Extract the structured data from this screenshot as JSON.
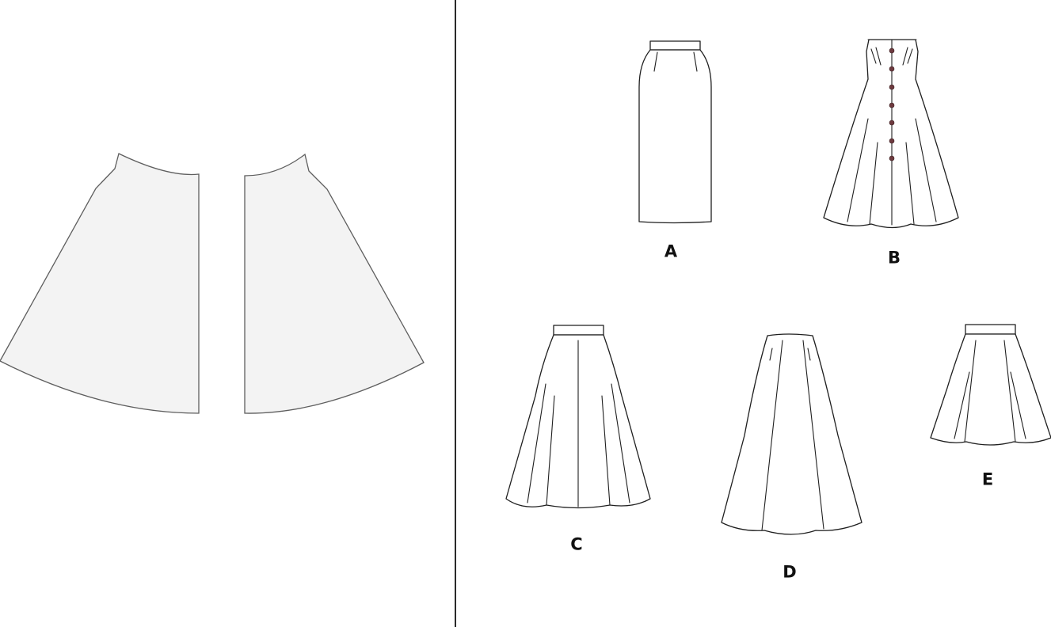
{
  "pattern_pieces": [
    {
      "id": "left-piece"
    },
    {
      "id": "right-piece"
    }
  ],
  "skirt_options": [
    {
      "key": "a",
      "label": "A"
    },
    {
      "key": "b",
      "label": "B"
    },
    {
      "key": "c",
      "label": "C"
    },
    {
      "key": "d",
      "label": "D"
    },
    {
      "key": "e",
      "label": "E"
    }
  ]
}
